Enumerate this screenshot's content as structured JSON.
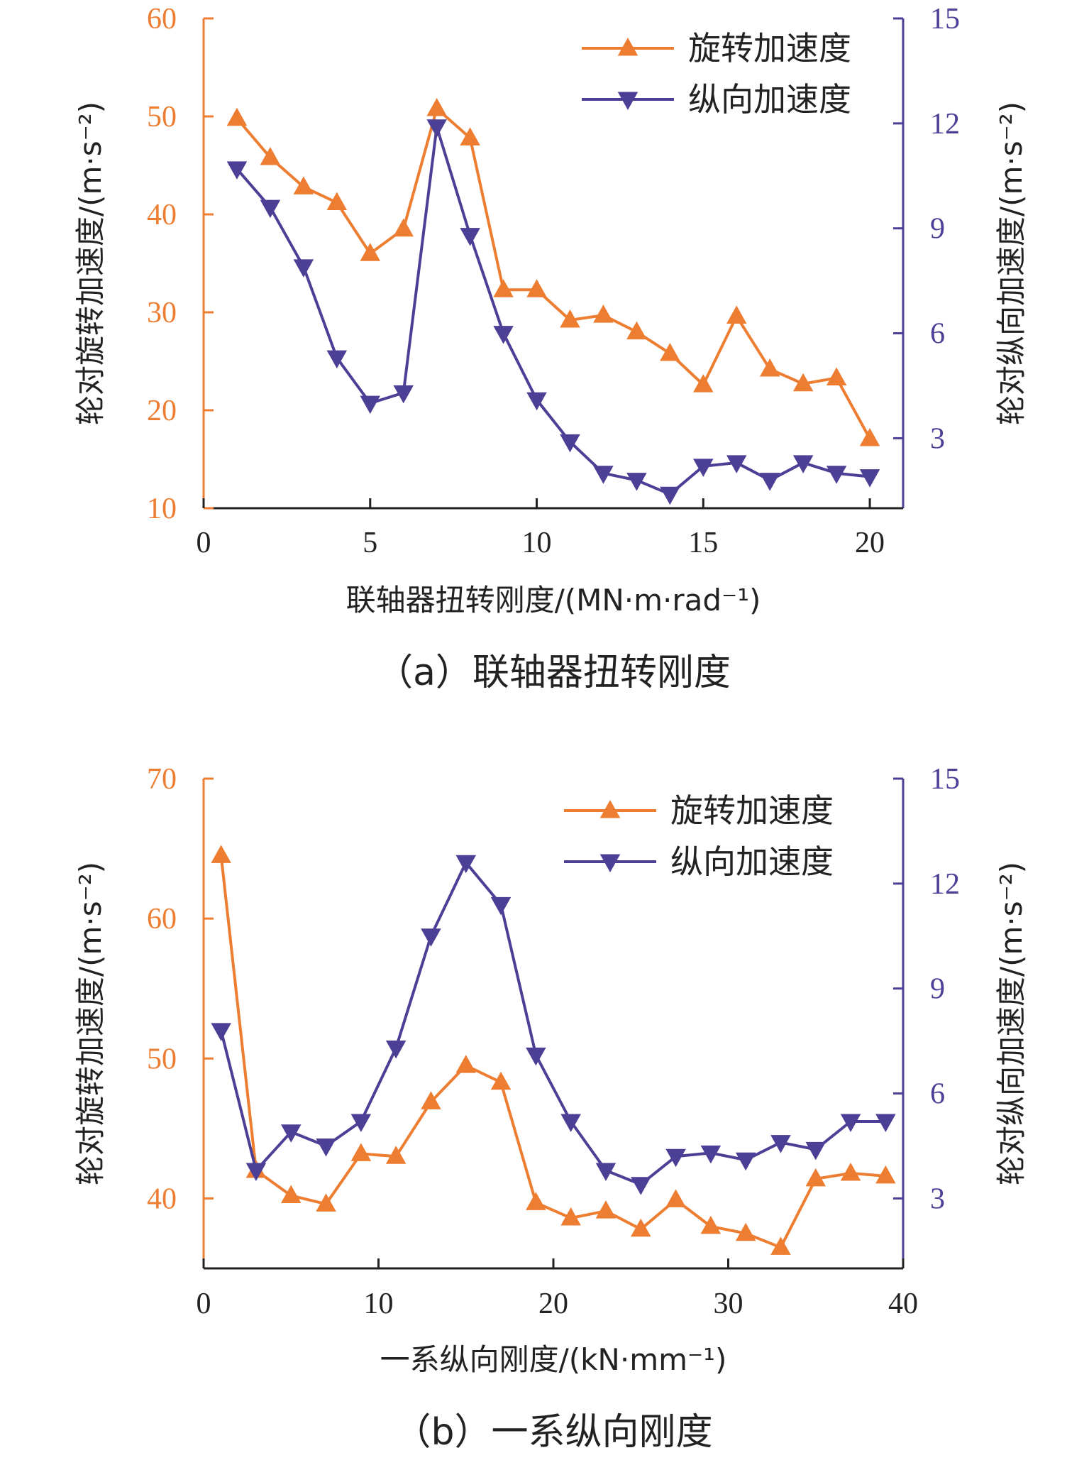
{
  "colors": {
    "rot": "#ED7D31",
    "lon": "#4B3F96",
    "axis": "#222222"
  },
  "chart_data": [
    {
      "type": "line",
      "caption": "（a）联轴器扭转刚度",
      "xlabel": "联轴器扭转刚度/(MN·m·rad⁻¹)",
      "ylabel_left": "轮对旋转加速度/(m·s⁻²)",
      "ylabel_right": "轮对纵向加速度/(m·s⁻²)",
      "xlim": [
        0,
        21
      ],
      "xticks": [
        "0",
        "5",
        "10",
        "15",
        "20"
      ],
      "ylim_left": [
        10,
        60
      ],
      "yticks_left": [
        "10",
        "20",
        "30",
        "40",
        "50",
        "60"
      ],
      "ylim_right": [
        1,
        15
      ],
      "yticks_right": [
        "3",
        "6",
        "9",
        "12",
        "15"
      ],
      "legend": {
        "position": "top-right"
      },
      "series": [
        {
          "name": "旋转加速度",
          "axis": "left",
          "marker": "triangle-up",
          "x": [
            1,
            2,
            3,
            4,
            5,
            6,
            7,
            8,
            9,
            10,
            11,
            12,
            13,
            14,
            15,
            16,
            17,
            18,
            19,
            20
          ],
          "values": [
            49.8,
            45.8,
            42.8,
            41.2,
            36,
            38.5,
            50.8,
            47.8,
            32.3,
            32.3,
            29.2,
            29.7,
            28,
            25.8,
            22.6,
            29.6,
            24.2,
            22.7,
            23.3,
            17.1
          ]
        },
        {
          "name": "纵向加速度",
          "axis": "right",
          "marker": "triangle-down",
          "x": [
            1,
            2,
            3,
            4,
            5,
            6,
            7,
            8,
            9,
            10,
            11,
            12,
            13,
            14,
            15,
            16,
            17,
            18,
            19,
            20
          ],
          "values": [
            10.7,
            9.6,
            7.9,
            5.3,
            4,
            4.3,
            11.9,
            8.8,
            6,
            4.1,
            2.9,
            2,
            1.8,
            1.4,
            2.2,
            2.3,
            1.8,
            2.3,
            2,
            1.9
          ]
        }
      ]
    },
    {
      "type": "line",
      "caption": "（b）一系纵向刚度",
      "xlabel": "一系纵向刚度/(kN·mm⁻¹)",
      "ylabel_left": "轮对旋转加速度/(m·s⁻²)",
      "ylabel_right": "轮对纵向加速度/(m·s⁻²)",
      "xlim": [
        0,
        40
      ],
      "xticks": [
        "0",
        "10",
        "20",
        "30",
        "40"
      ],
      "ylim_left": [
        35,
        70
      ],
      "yticks_left": [
        "40",
        "50",
        "60",
        "70"
      ],
      "ylim_right": [
        1,
        15
      ],
      "yticks_right": [
        "3",
        "6",
        "9",
        "12",
        "15"
      ],
      "legend": {
        "position": "top-right"
      },
      "series": [
        {
          "name": "旋转加速度",
          "axis": "left",
          "marker": "triangle-up",
          "x": [
            1,
            3,
            5,
            7,
            9,
            11,
            13,
            15,
            17,
            19,
            21,
            23,
            25,
            27,
            29,
            31,
            33,
            35,
            37,
            39
          ],
          "values": [
            64.5,
            42,
            40.2,
            39.6,
            43.2,
            43,
            46.9,
            49.5,
            48.3,
            39.7,
            38.6,
            39.1,
            37.8,
            39.9,
            38,
            37.5,
            36.5,
            41.4,
            41.8,
            41.6
          ]
        },
        {
          "name": "纵向加速度",
          "axis": "right",
          "marker": "triangle-down",
          "x": [
            1,
            3,
            5,
            7,
            9,
            11,
            13,
            15,
            17,
            19,
            21,
            23,
            25,
            27,
            29,
            31,
            33,
            35,
            37,
            39
          ],
          "values": [
            7.8,
            3.8,
            4.9,
            4.5,
            5.2,
            7.3,
            10.5,
            12.6,
            11.4,
            7.1,
            5.2,
            3.8,
            3.4,
            4.2,
            4.3,
            4.1,
            4.6,
            4.4,
            5.2,
            5.2
          ]
        }
      ]
    }
  ]
}
